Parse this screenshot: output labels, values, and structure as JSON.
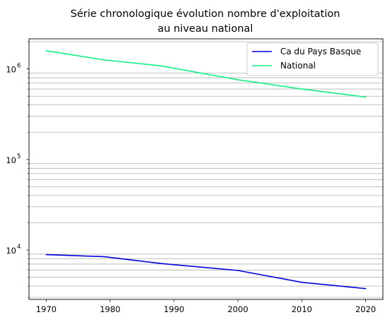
{
  "chart_data": {
    "type": "line",
    "title_lines": [
      "Série chronologique évolution nombre d'exploitation",
      "au niveau national"
    ],
    "xlabel": "",
    "ylabel": "",
    "x_ticks": [
      1970,
      1980,
      1990,
      2000,
      2010,
      2020
    ],
    "x_range": [
      1967.3,
      2022.7
    ],
    "y_scale": "log",
    "y_range": [
      2850,
      2150000
    ],
    "y_major_ticks": [
      {
        "value": 10000,
        "base": "10",
        "exp": "4"
      },
      {
        "value": 100000,
        "base": "10",
        "exp": "5"
      },
      {
        "value": 1000000,
        "base": "10",
        "exp": "6"
      }
    ],
    "grid": "horizontal minor lines",
    "legend_position": "top-right",
    "series": [
      {
        "name": "Ca du Pays Basque",
        "color": "#0000dd",
        "x": [
          1970,
          1979,
          1988,
          2000,
          2010,
          2020
        ],
        "y": [
          8900,
          8450,
          7100,
          5950,
          4400,
          3750
        ]
      },
      {
        "name": "National",
        "color": "#11ee88",
        "x": [
          1970,
          1979,
          1988,
          2000,
          2010,
          2020
        ],
        "y": [
          1590000,
          1260000,
          1080000,
          760000,
          600000,
          490000
        ]
      }
    ]
  }
}
